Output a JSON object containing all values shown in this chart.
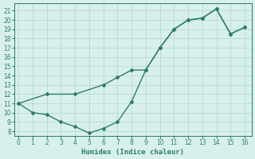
{
  "xlabel": "Humidex (Indice chaleur)",
  "line1_x": [
    0,
    1,
    2,
    3,
    4,
    5,
    6,
    7,
    8,
    9,
    10,
    11,
    12,
    13,
    14,
    15,
    16
  ],
  "line1_y": [
    11,
    10,
    9.8,
    9.0,
    8.5,
    7.8,
    8.3,
    9.0,
    11.2,
    14.6,
    17.0,
    19.0,
    20.0,
    20.2,
    21.2,
    18.5,
    19.2
  ],
  "line2_x": [
    0,
    2,
    4,
    6,
    7,
    8,
    9,
    10,
    11,
    12,
    13,
    14,
    15,
    16
  ],
  "line2_y": [
    11,
    12.0,
    12.0,
    13.0,
    13.8,
    14.6,
    14.6,
    17.0,
    19.0,
    20.0,
    20.2,
    21.2,
    18.5,
    19.2
  ],
  "line_color": "#2d7d6e",
  "bg_color": "#d8f0ec",
  "grid_color": "#b8d8d0",
  "tick_color": "#2d7d6e",
  "label_color": "#2d7d6e",
  "xlim": [
    -0.3,
    16.5
  ],
  "ylim": [
    7.5,
    21.8
  ],
  "xticks": [
    0,
    1,
    2,
    3,
    4,
    5,
    6,
    7,
    8,
    9,
    10,
    11,
    12,
    13,
    14,
    15,
    16
  ],
  "yticks": [
    8,
    9,
    10,
    11,
    12,
    13,
    14,
    15,
    16,
    17,
    18,
    19,
    20,
    21
  ]
}
